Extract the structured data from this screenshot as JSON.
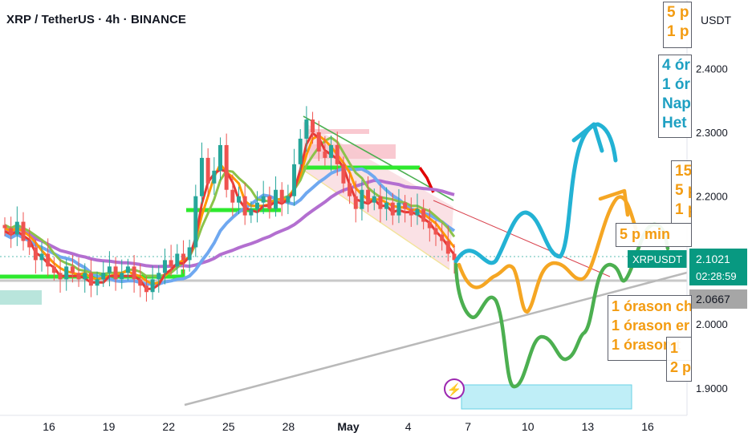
{
  "header": {
    "title": "XRP / TetherUS · 4h · BINANCE"
  },
  "price_axis": {
    "unit_label": "USDT"
  },
  "badges": {
    "symbol": "XRPUSDT",
    "last_price": "2.1021",
    "countdown": "02:28:59",
    "level_price": "2.0667"
  },
  "annotations": {
    "top_orange": [
      "5 p",
      "1 p"
    ],
    "top_teal": [
      "4 ór",
      "1 ór",
      "Nap",
      "Het"
    ],
    "mid_orange": [
      "15",
      "5 p",
      "1 p"
    ],
    "five_min": "5 p min",
    "hour_box": [
      "1 órason ch",
      "1 órason er",
      "1 órason t"
    ],
    "small_box": [
      "1",
      "2 p"
    ]
  },
  "icons": {
    "flash": "lightning-icon"
  },
  "colors": {
    "up": "#26a69a",
    "down": "#ef5350",
    "ema_fast": "#ff9800",
    "ema_red": "#e53935",
    "ema_green": "#8bc34a",
    "ema_blue": "#6fa8f0",
    "ma_purple": "#b36fd0",
    "neon_green": "#2ee92e",
    "scenario_teal": "#23b2d4",
    "scenario_orange": "#f5a623",
    "scenario_green": "#4caf50",
    "badge_bg": "#089981",
    "level_bg": "#a6a6a6"
  },
  "chart_data": {
    "type": "candlestick",
    "symbol": "XRPUSDT",
    "timeframe": "4h",
    "exchange": "BINANCE",
    "x_ticks": [
      "16",
      "19",
      "22",
      "25",
      "28",
      "May",
      "4",
      "7",
      "10",
      "13",
      "16"
    ],
    "y_ticks": [
      "2.4000",
      "2.3000",
      "2.2000",
      "2.1000",
      "2.0000",
      "1.9000"
    ],
    "ylim": [
      1.872,
      2.5
    ],
    "last_price": 2.1021,
    "levels": [
      2.0667,
      2.0832
    ],
    "series_closes": [
      2.15,
      2.14,
      2.16,
      2.13,
      2.12,
      2.1,
      2.11,
      2.09,
      2.08,
      2.07,
      2.09,
      2.08,
      2.07,
      2.08,
      2.06,
      2.07,
      2.08,
      2.09,
      2.07,
      2.08,
      2.09,
      2.07,
      2.06,
      2.05,
      2.07,
      2.08,
      2.1,
      2.09,
      2.11,
      2.1,
      2.12,
      2.2,
      2.26,
      2.22,
      2.24,
      2.28,
      2.21,
      2.19,
      2.2,
      2.17,
      2.18,
      2.19,
      2.2,
      2.18,
      2.21,
      2.19,
      2.2,
      2.25,
      2.29,
      2.32,
      2.3,
      2.27,
      2.26,
      2.28,
      2.25,
      2.22,
      2.2,
      2.18,
      2.21,
      2.19,
      2.2,
      2.18,
      2.19,
      2.17,
      2.19,
      2.18,
      2.17,
      2.18,
      2.16,
      2.15,
      2.14,
      2.13,
      2.11,
      2.1
    ]
  }
}
